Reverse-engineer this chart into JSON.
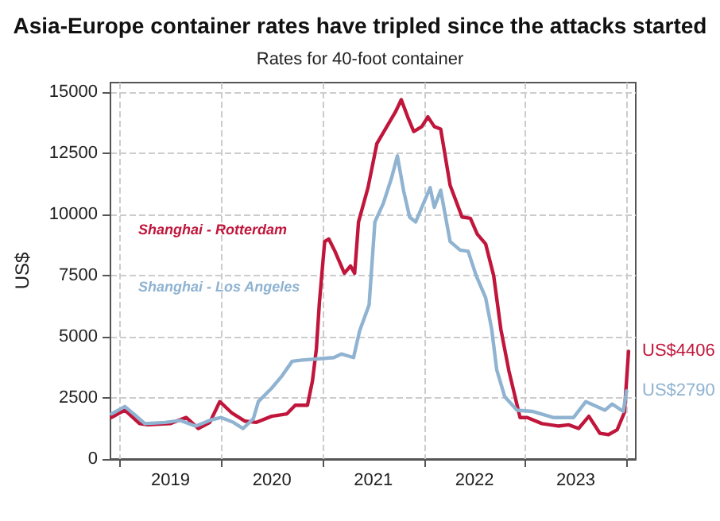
{
  "chart_data": {
    "type": "line",
    "title": "Asia-Europe container rates have tripled since the attacks started",
    "subtitle": "Rates for 40-foot container",
    "ylabel": "US$",
    "xlim": [
      "2018-11-28",
      "2024-02-03"
    ],
    "ylim": [
      0,
      15400
    ],
    "xticks": [
      {
        "value": "2019-01-01",
        "label": null
      },
      {
        "value": "2019-07-02",
        "label": "2019"
      },
      {
        "value": "2020-01-01",
        "label": null
      },
      {
        "value": "2020-07-02",
        "label": "2020"
      },
      {
        "value": "2021-01-01",
        "label": null
      },
      {
        "value": "2021-07-02",
        "label": "2021"
      },
      {
        "value": "2022-01-01",
        "label": null
      },
      {
        "value": "2022-07-02",
        "label": "2022"
      },
      {
        "value": "2023-01-01",
        "label": null
      },
      {
        "value": "2023-07-02",
        "label": "2023"
      },
      {
        "value": "2024-01-01",
        "label": null
      }
    ],
    "yticks": [
      0,
      2500,
      5000,
      7500,
      10000,
      12500,
      15000
    ],
    "grid": true,
    "legend": false,
    "marker": "none",
    "line_style": "solid",
    "series": [
      {
        "name": "Shanghai - Rotterdam",
        "color": "#c0163c",
        "x": [
          "2018-12-02",
          "2019-01-19",
          "2019-03-13",
          "2019-04-11",
          "2019-07-01",
          "2019-08-28",
          "2019-10-11",
          "2019-11-21",
          "2019-12-27",
          "2020-02-07",
          "2020-03-27",
          "2020-05-07",
          "2020-07-01",
          "2020-08-25",
          "2020-09-24",
          "2020-11-07",
          "2020-11-25",
          "2020-12-09",
          "2020-12-20",
          "2021-01-08",
          "2021-01-23",
          "2021-02-14",
          "2021-03-20",
          "2021-04-11",
          "2021-04-26",
          "2021-05-10",
          "2021-06-13",
          "2021-07-15",
          "2021-08-25",
          "2021-09-20",
          "2021-10-11",
          "2021-11-03",
          "2021-11-25",
          "2021-12-24",
          "2022-01-15",
          "2022-02-07",
          "2022-03-02",
          "2022-04-05",
          "2022-05-18",
          "2022-06-17",
          "2022-07-12",
          "2022-08-11",
          "2022-09-09",
          "2022-10-05",
          "2022-11-03",
          "2022-12-13",
          "2023-01-08",
          "2023-03-02",
          "2023-04-29",
          "2023-06-06",
          "2023-07-12",
          "2023-08-18",
          "2023-09-27",
          "2023-10-28",
          "2023-11-28",
          "2023-12-24",
          "2024-01-08"
        ],
        "values": [
          1700,
          2000,
          1450,
          1400,
          1450,
          1700,
          1250,
          1500,
          2350,
          1900,
          1550,
          1500,
          1750,
          1850,
          2200,
          2200,
          3200,
          4500,
          6400,
          8900,
          9000,
          8500,
          7600,
          7900,
          7600,
          9700,
          11100,
          12900,
          13700,
          14200,
          14700,
          14000,
          13400,
          13600,
          14000,
          13600,
          13500,
          11200,
          9900,
          9850,
          9200,
          8800,
          7500,
          5300,
          3600,
          1700,
          1700,
          1450,
          1350,
          1400,
          1250,
          1750,
          1050,
          1000,
          1200,
          1900,
          4406
        ]
      },
      {
        "name": "Shanghai - Los Angeles",
        "color": "#8fb3d1",
        "x": [
          "2018-12-02",
          "2019-01-19",
          "2019-02-25",
          "2019-04-01",
          "2019-06-13",
          "2019-08-07",
          "2019-10-01",
          "2019-11-25",
          "2020-01-01",
          "2020-02-14",
          "2020-03-20",
          "2020-04-26",
          "2020-05-14",
          "2020-07-01",
          "2020-08-07",
          "2020-09-13",
          "2020-10-19",
          "2020-12-17",
          "2021-02-10",
          "2021-03-09",
          "2021-04-22",
          "2021-05-14",
          "2021-06-17",
          "2021-07-08",
          "2021-08-07",
          "2021-09-06",
          "2021-09-27",
          "2021-10-19",
          "2021-11-10",
          "2021-12-02",
          "2021-12-24",
          "2022-01-23",
          "2022-02-07",
          "2022-03-02",
          "2022-04-05",
          "2022-05-11",
          "2022-06-09",
          "2022-07-08",
          "2022-08-11",
          "2022-09-02",
          "2022-09-20",
          "2022-10-19",
          "2022-12-02",
          "2023-01-26",
          "2023-04-11",
          "2023-06-24",
          "2023-08-07",
          "2023-10-15",
          "2023-11-10",
          "2023-12-20",
          "2024-01-01"
        ],
        "values": [
          1850,
          2150,
          1800,
          1450,
          1500,
          1580,
          1350,
          1600,
          1700,
          1500,
          1250,
          1650,
          2350,
          2900,
          3400,
          4000,
          4050,
          4100,
          4150,
          4300,
          4150,
          5250,
          6300,
          9700,
          10450,
          11500,
          12400,
          11000,
          9900,
          9700,
          10300,
          11100,
          10300,
          11000,
          8900,
          8550,
          8500,
          7500,
          6600,
          5300,
          3650,
          2550,
          2000,
          1950,
          1700,
          1700,
          2350,
          2000,
          2250,
          1950,
          2790
        ]
      }
    ],
    "annotations": [
      {
        "text": "US$4406",
        "x": "2024-01-08",
        "y": 4406
      },
      {
        "text": "US$2790",
        "x": "2024-01-01",
        "y": 2790
      }
    ]
  }
}
